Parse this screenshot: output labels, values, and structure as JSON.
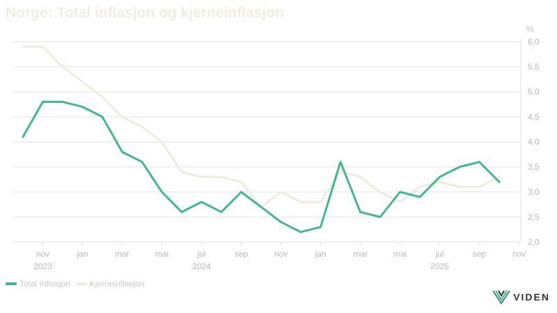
{
  "title": "Norge: Total inflasjon og kjerneinflasjon",
  "brand": {
    "name": "VIDEN"
  },
  "colors": {
    "total": "#3cb894",
    "core": "#efebdd",
    "grid": "#e2e2e2",
    "tick": "#b8b8b8"
  },
  "chart_data": {
    "type": "line",
    "title": "Norge: Total inflasjon og kjerneinflasjon",
    "unit": "%",
    "x": [
      "2023-10",
      "2023-11",
      "2023-12",
      "2024-01",
      "2024-02",
      "2024-03",
      "2024-04",
      "2024-05",
      "2024-06",
      "2024-07",
      "2024-08",
      "2024-09",
      "2024-10",
      "2024-11",
      "2024-12",
      "2025-01",
      "2025-02",
      "2025-03",
      "2025-04",
      "2025-05",
      "2025-06",
      "2025-07",
      "2025-08",
      "2025-09",
      "2025-10"
    ],
    "series": [
      {
        "name": "Total inflasjon",
        "color": "#3cb894",
        "values": [
          4.1,
          4.8,
          4.8,
          4.7,
          4.5,
          3.8,
          3.6,
          3.0,
          2.6,
          2.8,
          2.6,
          3.0,
          2.7,
          2.4,
          2.2,
          2.3,
          3.6,
          2.6,
          2.5,
          3.0,
          2.9,
          3.3,
          3.5,
          3.6,
          3.2
        ]
      },
      {
        "name": "Kjerneinflasjon",
        "color": "#efebdd",
        "values": [
          5.9,
          5.9,
          5.5,
          5.2,
          4.9,
          4.5,
          4.3,
          4.0,
          3.4,
          3.3,
          3.3,
          3.2,
          2.7,
          3.0,
          2.8,
          2.8,
          3.4,
          3.3,
          3.0,
          2.8,
          3.1,
          3.2,
          3.1,
          3.1,
          3.3
        ]
      }
    ],
    "ylim": [
      2.0,
      6.0
    ],
    "yticks": [
      "6,0",
      "5,5",
      "5,0",
      "4,5",
      "4,0",
      "3,5",
      "3,0",
      "2,5",
      "2,0"
    ],
    "xticks": [
      {
        "label": "nov",
        "year": "2023"
      },
      {
        "label": "jan",
        "year": ""
      },
      {
        "label": "mar",
        "year": ""
      },
      {
        "label": "mai",
        "year": ""
      },
      {
        "label": "jul",
        "year": "2024"
      },
      {
        "label": "sep",
        "year": ""
      },
      {
        "label": "nov",
        "year": ""
      },
      {
        "label": "jan",
        "year": ""
      },
      {
        "label": "mar",
        "year": ""
      },
      {
        "label": "mai",
        "year": ""
      },
      {
        "label": "jul",
        "year": "2025"
      },
      {
        "label": "sep",
        "year": ""
      },
      {
        "label": "nov",
        "year": ""
      }
    ],
    "grid": true,
    "legend": "bottom-left"
  }
}
